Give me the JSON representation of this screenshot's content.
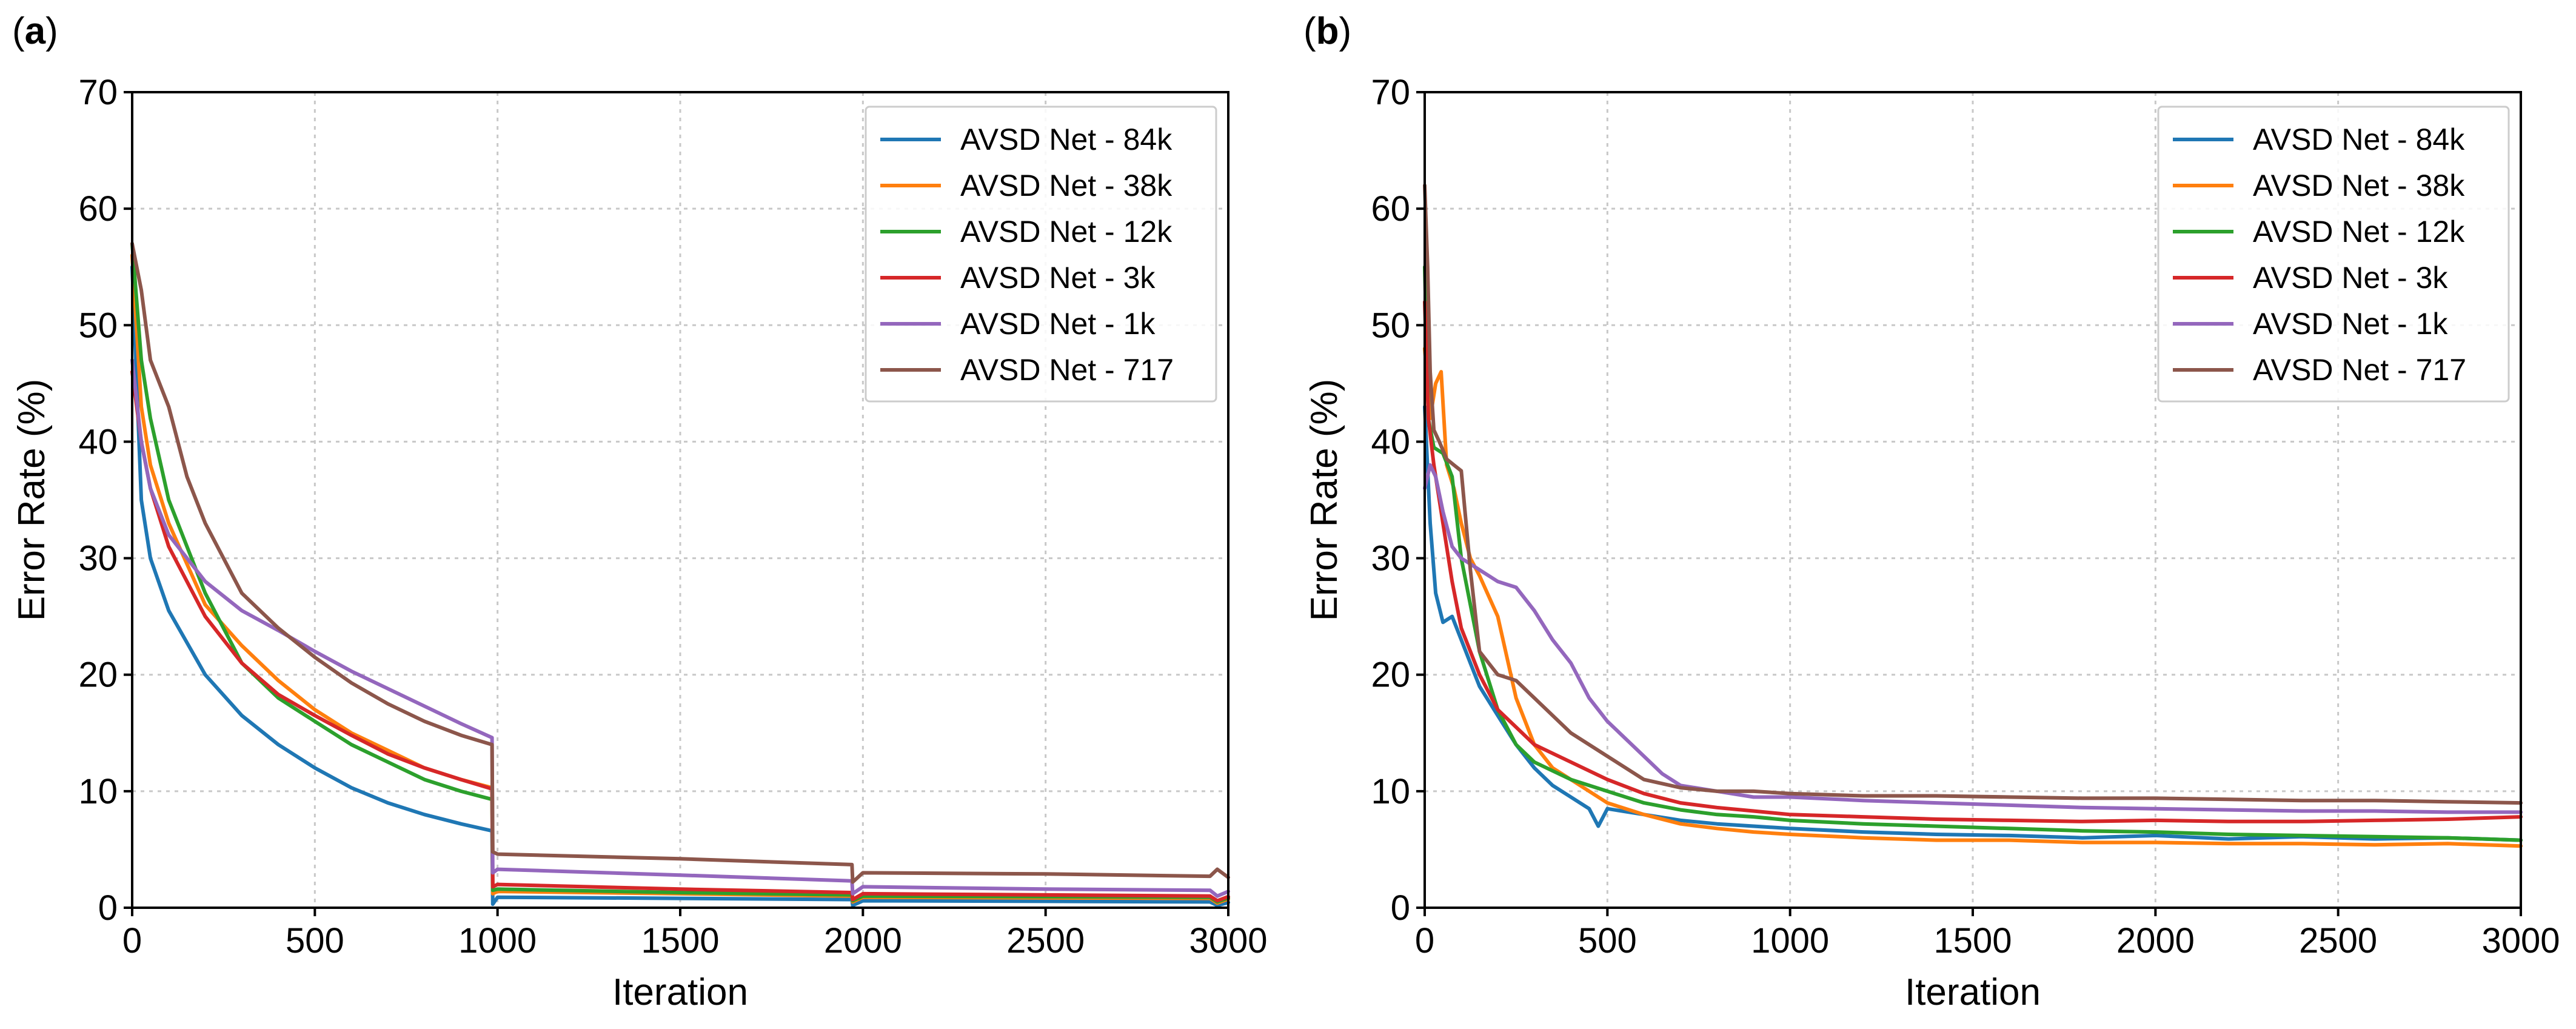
{
  "colors": {
    "AVSD Net - 84k": "#1f77b4",
    "AVSD Net - 38k": "#ff7f0e",
    "AVSD Net - 12k": "#2ca02c",
    "AVSD Net - 3k": "#d62728",
    "AVSD Net - 1k": "#9467bd",
    "AVSD Net - 717": "#8c564b"
  },
  "chart_data": [
    {
      "panel": "(a)",
      "panel_letter": "a",
      "type": "line",
      "xlabel": "Iteration",
      "ylabel": "Error Rate (%)",
      "xlim": [
        0,
        3000
      ],
      "ylim": [
        0,
        70
      ],
      "xticks": [
        0,
        500,
        1000,
        1500,
        2000,
        2500,
        3000
      ],
      "yticks": [
        0,
        10,
        20,
        30,
        40,
        50,
        60,
        70
      ],
      "grid": true,
      "legend_position": "top-right",
      "series": [
        {
          "name": "AVSD Net - 84k",
          "x": [
            0,
            25,
            50,
            100,
            200,
            300,
            400,
            500,
            600,
            700,
            800,
            900,
            985,
            987,
            1000,
            1500,
            1970,
            1972,
            2000,
            2500,
            2950,
            2970,
            3000
          ],
          "y": [
            55,
            35,
            30,
            25.5,
            20,
            16.5,
            14,
            12,
            10.3,
            9,
            8,
            7.2,
            6.6,
            0.3,
            0.9,
            0.8,
            0.7,
            0.2,
            0.6,
            0.55,
            0.5,
            0.2,
            0.45
          ]
        },
        {
          "name": "AVSD Net - 38k",
          "x": [
            0,
            25,
            50,
            100,
            200,
            300,
            400,
            500,
            600,
            700,
            800,
            900,
            985,
            987,
            1000,
            1500,
            1970,
            1972,
            2000,
            2500,
            2950,
            2970,
            3000
          ],
          "y": [
            56,
            43,
            38,
            33,
            26,
            22.5,
            19.5,
            17,
            15,
            13.5,
            12,
            11,
            10.3,
            1.2,
            1.4,
            1.2,
            1.0,
            0.5,
            0.9,
            0.85,
            0.8,
            0.4,
            0.75
          ]
        },
        {
          "name": "AVSD Net - 12k",
          "x": [
            0,
            25,
            50,
            100,
            200,
            300,
            400,
            500,
            600,
            700,
            800,
            900,
            985,
            987,
            1000,
            1500,
            1970,
            1972,
            2000,
            2500,
            2950,
            2970,
            3000
          ],
          "y": [
            57,
            47,
            42,
            35,
            27,
            21,
            18,
            16,
            14,
            12.5,
            11,
            10,
            9.3,
            1.5,
            1.6,
            1.3,
            1.1,
            0.6,
            1.0,
            0.95,
            0.9,
            0.5,
            0.85
          ]
        },
        {
          "name": "AVSD Net - 3k",
          "x": [
            0,
            25,
            50,
            100,
            200,
            300,
            400,
            500,
            600,
            700,
            800,
            900,
            985,
            987,
            1000,
            1500,
            1970,
            1972,
            2000,
            2500,
            2950,
            2970,
            3000
          ],
          "y": [
            46,
            40,
            36,
            31,
            25,
            21,
            18.3,
            16.5,
            14.8,
            13.2,
            12,
            11,
            10.2,
            1.8,
            2.0,
            1.6,
            1.3,
            0.7,
            1.2,
            1.1,
            1.0,
            0.6,
            0.95
          ]
        },
        {
          "name": "AVSD Net - 1k",
          "x": [
            0,
            25,
            50,
            100,
            200,
            300,
            400,
            500,
            600,
            700,
            800,
            900,
            985,
            987,
            1000,
            1500,
            1970,
            1972,
            2000,
            2500,
            2950,
            2970,
            3000
          ],
          "y": [
            47,
            40,
            36,
            32,
            28,
            25.5,
            23.8,
            22,
            20.3,
            18.8,
            17.3,
            15.8,
            14.6,
            3.0,
            3.3,
            2.8,
            2.3,
            1.2,
            1.8,
            1.6,
            1.5,
            1.0,
            1.4
          ]
        },
        {
          "name": "AVSD Net - 717",
          "x": [
            0,
            25,
            50,
            100,
            150,
            200,
            300,
            400,
            500,
            600,
            700,
            800,
            900,
            985,
            987,
            1000,
            1500,
            1970,
            1972,
            2000,
            2500,
            2950,
            2970,
            3000
          ],
          "y": [
            57,
            53,
            47,
            43,
            37,
            33,
            27,
            24,
            21.5,
            19.3,
            17.5,
            16,
            14.8,
            14.0,
            4.8,
            4.6,
            4.2,
            3.7,
            2.2,
            3.0,
            2.9,
            2.7,
            3.3,
            2.6
          ]
        }
      ]
    },
    {
      "panel": "(b)",
      "panel_letter": "b",
      "type": "line",
      "xlabel": "Iteration",
      "ylabel": "Error Rate (%)",
      "xlim": [
        0,
        3000
      ],
      "ylim": [
        0,
        70
      ],
      "xticks": [
        0,
        500,
        1000,
        1500,
        2000,
        2500,
        3000
      ],
      "yticks": [
        0,
        10,
        20,
        30,
        40,
        50,
        60,
        70
      ],
      "grid": true,
      "legend_position": "top-right",
      "series": [
        {
          "name": "AVSD Net - 84k",
          "x": [
            0,
            15,
            30,
            50,
            75,
            100,
            125,
            150,
            200,
            250,
            300,
            350,
            400,
            450,
            475,
            500,
            600,
            700,
            800,
            900,
            1000,
            1200,
            1400,
            1600,
            1800,
            2000,
            2200,
            2400,
            2600,
            2800,
            3000
          ],
          "y": [
            43,
            33,
            27,
            24.5,
            25,
            23,
            21,
            19,
            16.5,
            14,
            12,
            10.5,
            9.5,
            8.5,
            7,
            8.5,
            8,
            7.5,
            7.2,
            7,
            6.8,
            6.5,
            6.3,
            6.2,
            6,
            6.2,
            5.9,
            6.1,
            5.9,
            6,
            5.8
          ]
        },
        {
          "name": "AVSD Net - 38k",
          "x": [
            0,
            15,
            30,
            45,
            60,
            80,
            100,
            125,
            150,
            200,
            250,
            300,
            350,
            400,
            500,
            600,
            700,
            800,
            900,
            1000,
            1200,
            1400,
            1600,
            1800,
            2000,
            2200,
            2400,
            2600,
            2800,
            3000
          ],
          "y": [
            48,
            42,
            45,
            46,
            38,
            36,
            33,
            30,
            28.5,
            25,
            18,
            14,
            12,
            11,
            9,
            8,
            7.2,
            6.8,
            6.5,
            6.3,
            6,
            5.8,
            5.8,
            5.6,
            5.6,
            5.5,
            5.5,
            5.4,
            5.5,
            5.3
          ]
        },
        {
          "name": "AVSD Net - 12k",
          "x": [
            0,
            10,
            25,
            50,
            75,
            100,
            150,
            200,
            250,
            300,
            400,
            500,
            600,
            700,
            800,
            900,
            1000,
            1200,
            1400,
            1600,
            1800,
            2000,
            2200,
            2400,
            2600,
            2800,
            3000
          ],
          "y": [
            55,
            42,
            39.5,
            39,
            37,
            30,
            22,
            17,
            14,
            12.5,
            11,
            10,
            9,
            8.4,
            8,
            7.8,
            7.5,
            7.2,
            7,
            6.8,
            6.6,
            6.5,
            6.3,
            6.2,
            6.1,
            6.0,
            5.8
          ]
        },
        {
          "name": "AVSD Net - 3k",
          "x": [
            0,
            10,
            25,
            50,
            75,
            100,
            150,
            200,
            250,
            300,
            400,
            500,
            600,
            700,
            800,
            900,
            1000,
            1200,
            1400,
            1600,
            1800,
            2000,
            2200,
            2400,
            2600,
            2800,
            3000
          ],
          "y": [
            52,
            42,
            38,
            33,
            28,
            24,
            20,
            17,
            15.5,
            14,
            12.5,
            11,
            9.8,
            9,
            8.6,
            8.3,
            8,
            7.8,
            7.6,
            7.5,
            7.4,
            7.5,
            7.4,
            7.4,
            7.5,
            7.6,
            7.8
          ]
        },
        {
          "name": "AVSD Net - 1k",
          "x": [
            0,
            15,
            30,
            50,
            75,
            100,
            150,
            200,
            250,
            300,
            350,
            400,
            450,
            500,
            550,
            600,
            650,
            700,
            800,
            900,
            1000,
            1200,
            1400,
            1600,
            1800,
            2000,
            2200,
            2400,
            2600,
            2800,
            3000
          ],
          "y": [
            36,
            38,
            37,
            34,
            31,
            30,
            29,
            28,
            27.5,
            25.5,
            23,
            21,
            18,
            16,
            14.5,
            13,
            11.5,
            10.5,
            10,
            9.5,
            9.5,
            9.2,
            9,
            8.8,
            8.6,
            8.5,
            8.4,
            8.3,
            8.3,
            8.2,
            8.2
          ]
        },
        {
          "name": "AVSD Net - 717",
          "x": [
            0,
            8,
            15,
            25,
            40,
            60,
            80,
            100,
            125,
            150,
            200,
            250,
            300,
            400,
            500,
            600,
            700,
            800,
            900,
            1000,
            1200,
            1400,
            1600,
            1800,
            2000,
            2200,
            2400,
            2600,
            2800,
            3000
          ],
          "y": [
            62,
            55,
            46,
            41,
            40,
            38.5,
            38,
            37.5,
            29,
            22,
            20,
            19.5,
            18,
            15,
            13,
            11,
            10.3,
            10,
            10,
            9.8,
            9.6,
            9.6,
            9.5,
            9.4,
            9.4,
            9.3,
            9.2,
            9.2,
            9.1,
            9.0
          ]
        }
      ]
    }
  ]
}
